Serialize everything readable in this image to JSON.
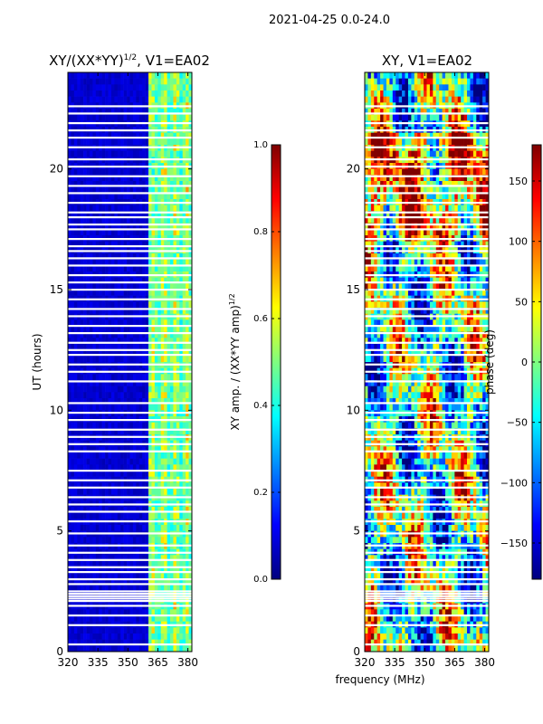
{
  "suptitle": "2021-04-25 0.0-24.0",
  "shared_xlabel": "frequency (MHz)",
  "colormap_stops": [
    "#00007f",
    "#0000ff",
    "#007fff",
    "#00ffff",
    "#7fff7f",
    "#ffff00",
    "#ff7f00",
    "#ff0000",
    "#7f0000"
  ],
  "chart_data": [
    {
      "type": "heatmap",
      "title_main": "XY/(XX*YY)",
      "title_sup": "1/2",
      "title_tail": ", V1=EA02",
      "ylabel": "UT (hours)",
      "x": {
        "range": [
          320,
          382
        ],
        "ticks": [
          320,
          335,
          350,
          365,
          380
        ]
      },
      "y": {
        "range": [
          0,
          24
        ],
        "ticks": [
          0,
          5,
          10,
          15,
          20
        ]
      },
      "colorbar": {
        "label_main": "XY amp. / (XX*YY amp)",
        "label_sup": "1/2",
        "range": [
          0,
          1
        ],
        "ticks": [
          0.0,
          0.2,
          0.4,
          0.6,
          0.8,
          1.0
        ],
        "tick_labels": [
          "0.0",
          "0.2",
          "0.4",
          "0.6",
          "0.8",
          "1.0"
        ]
      },
      "dominant_value_low_band": 0.05,
      "dominant_value_high_band": 0.35,
      "high_band_start_MHz": 361
    },
    {
      "type": "heatmap",
      "title": "XY, V1=EA02",
      "x": {
        "range": [
          320,
          382
        ],
        "ticks": [
          320,
          335,
          350,
          365,
          380
        ]
      },
      "y": {
        "range": [
          0,
          24
        ],
        "ticks": [
          0,
          5,
          10,
          15,
          20
        ]
      },
      "colorbar": {
        "label": "phase (deg)",
        "range": [
          -180,
          180
        ],
        "ticks": [
          -150,
          -100,
          -50,
          0,
          50,
          100,
          150
        ],
        "tick_labels": [
          "−150",
          "−100",
          "−50",
          "0",
          "50",
          "100",
          "150"
        ]
      }
    }
  ],
  "flagged_time_rows_hours": [
    0.3,
    1.1,
    1.5,
    1.9,
    2.1,
    2.2,
    2.3,
    2.4,
    2.5,
    2.8,
    3.0,
    3.3,
    3.5,
    3.8,
    4.1,
    4.4,
    4.9,
    5.4,
    5.8,
    6.1,
    6.4,
    6.8,
    7.1,
    7.5,
    8.3,
    8.6,
    8.9,
    9.2,
    9.6,
    9.9,
    10.3,
    11.2,
    11.6,
    11.9,
    12.3,
    12.5,
    12.8,
    13.2,
    13.5,
    13.9,
    14.2,
    14.6,
    15.0,
    15.3,
    15.6,
    16.0,
    16.3,
    16.6,
    16.8,
    17.1,
    17.5,
    17.7,
    18.0,
    18.2,
    18.6,
    19.0,
    19.3,
    19.7,
    20.1,
    20.4,
    20.9,
    21.3,
    21.6,
    21.9,
    22.3,
    22.6
  ]
}
